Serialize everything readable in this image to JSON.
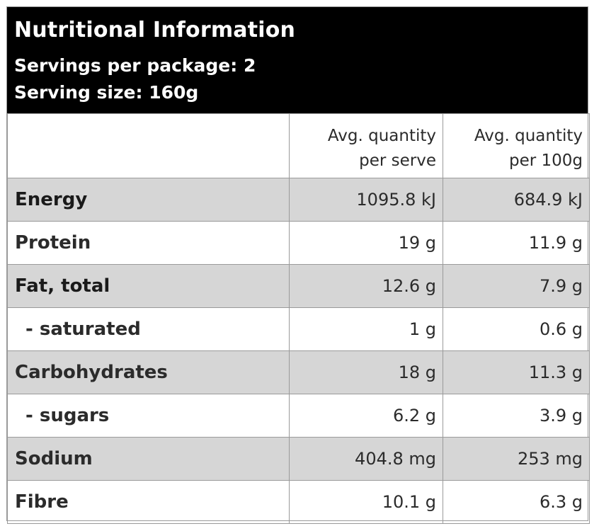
{
  "header": {
    "title": "Nutritional Information",
    "servings": "Servings per package: 2",
    "serving_size": "Serving size: 160g"
  },
  "columns": {
    "per_serve_line1": "Avg. quantity",
    "per_serve_line2": "per serve",
    "per_100g_line1": "Avg. quantity",
    "per_100g_line2": "per 100g"
  },
  "rows": [
    {
      "name": "Energy",
      "per_serve": "1095.8 kJ",
      "per_100g": "684.9 kJ"
    },
    {
      "name": "Protein",
      "per_serve": "19 g",
      "per_100g": "11.9 g"
    },
    {
      "name": "Fat, total",
      "per_serve": "12.6 g",
      "per_100g": "7.9 g"
    },
    {
      "name": "- saturated",
      "per_serve": "1 g",
      "per_100g": "0.6 g"
    },
    {
      "name": "Carbohydrates",
      "per_serve": "18 g",
      "per_100g": "11.3 g"
    },
    {
      "name": "- sugars",
      "per_serve": "6.2 g",
      "per_100g": "3.9 g"
    },
    {
      "name": "Sodium",
      "per_serve": "404.8 mg",
      "per_100g": "253 mg"
    },
    {
      "name": "Fibre",
      "per_serve": "10.1 g",
      "per_100g": "6.3 g"
    }
  ],
  "colors": {
    "header_bg": "#000000",
    "shaded_row_bg": "#d6d6d6",
    "border": "#9a9a9a"
  }
}
